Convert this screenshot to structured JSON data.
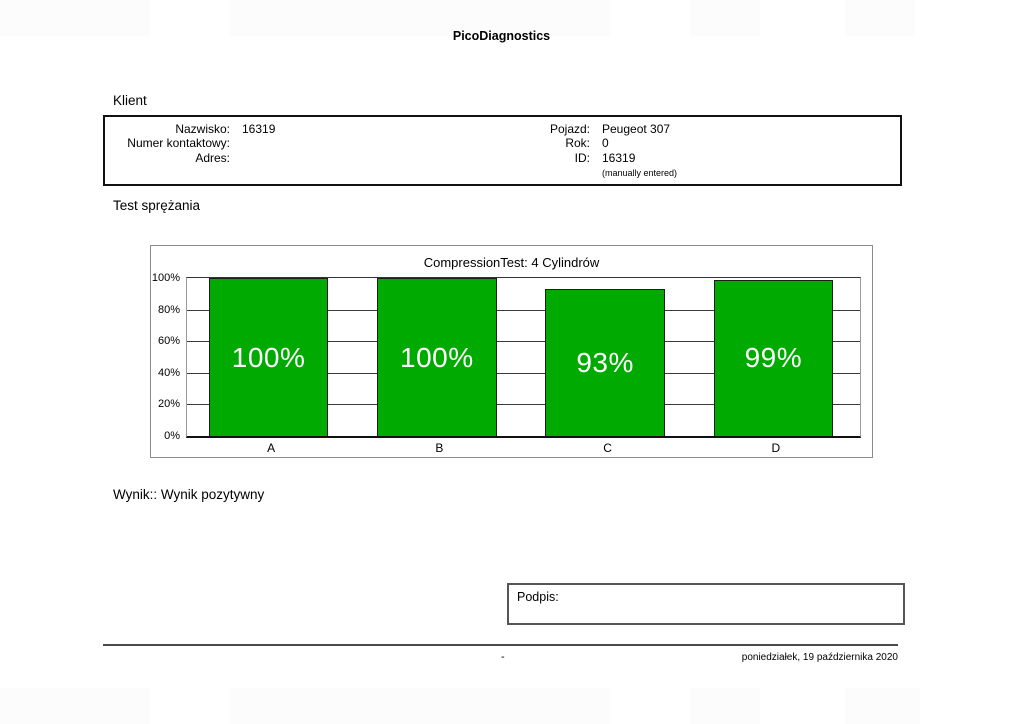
{
  "header": {
    "app_title": "PicoDiagnostics"
  },
  "client": {
    "section_title": "Klient",
    "fields_left": [
      {
        "label": "Nazwisko:",
        "value": "16319"
      },
      {
        "label": "Numer kontaktowy:",
        "value": ""
      },
      {
        "label": "Adres:",
        "value": ""
      }
    ],
    "fields_right": [
      {
        "label": "Pojazd:",
        "value": "Peugeot 307"
      },
      {
        "label": "Rok:",
        "value": "0"
      },
      {
        "label": "ID:",
        "value": "16319"
      }
    ],
    "id_note": "(manually entered)"
  },
  "compression_test": {
    "section_title": "Test sprężania",
    "result_text": "Wynik:: Wynik pozytywny"
  },
  "signature": {
    "label": "Podpis:"
  },
  "footer": {
    "page_marker": "-",
    "date": "poniedziałek, 19 października 2020"
  },
  "chart_data": {
    "type": "bar",
    "title": "CompressionTest: 4 Cylindrów",
    "categories": [
      "A",
      "B",
      "C",
      "D"
    ],
    "values": [
      100,
      100,
      93,
      99
    ],
    "value_labels": [
      "100%",
      "100%",
      "93%",
      "99%"
    ],
    "ytick_labels": [
      "100%",
      "80%",
      "60%",
      "40%",
      "20%",
      "0%"
    ],
    "ylim": [
      0,
      100
    ],
    "grid": true,
    "legend": "none",
    "bar_color": "#00AA00",
    "bar_border_color": "#1E1E1E",
    "bar_label_color": "#FFFFFF"
  }
}
